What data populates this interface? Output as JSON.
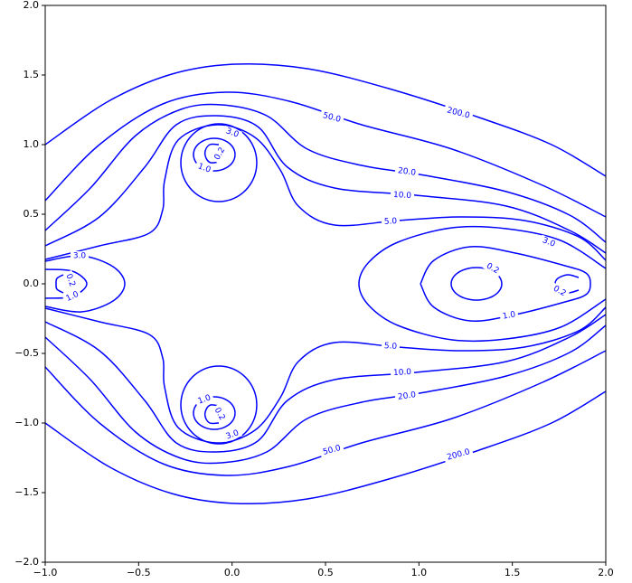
{
  "chart_data": {
    "type": "contour",
    "color": "#0000ff",
    "levels": [
      0.2,
      {
        "value": 1,
        "label": "1.0"
      },
      {
        "value": 3,
        "label": "3.0"
      },
      {
        "value": 5,
        "label": "5.0"
      },
      {
        "value": 10,
        "label": "10.0"
      },
      {
        "value": 20,
        "label": "20.0"
      },
      {
        "value": 50,
        "label": "50.0"
      },
      {
        "value": 200,
        "label": "200.0"
      }
    ],
    "xlim": [
      -1,
      2
    ],
    "ylim": [
      -2,
      2
    ],
    "xticks": [
      {
        "value": -1,
        "label": "−1.0"
      },
      {
        "value": -0.5,
        "label": "−0.5"
      },
      {
        "value": 0,
        "label": "0.0"
      },
      {
        "value": 0.5,
        "label": "0.5"
      },
      {
        "value": 1,
        "label": "1.0"
      },
      {
        "value": 1.5,
        "label": "1.5"
      },
      {
        "value": 2,
        "label": "2.0"
      }
    ],
    "yticks": [
      {
        "value": -2,
        "label": "−2.0"
      },
      {
        "value": -1.5,
        "label": "−1.5"
      },
      {
        "value": -1,
        "label": "−1.0"
      },
      {
        "value": -0.5,
        "label": "−0.5"
      },
      {
        "value": 0,
        "label": "0.0"
      },
      {
        "value": 0.5,
        "label": "0.5"
      },
      {
        "value": 1,
        "label": "1.0"
      },
      {
        "value": 1.5,
        "label": "1.5"
      },
      {
        "value": 2,
        "label": "2.0"
      }
    ]
  }
}
